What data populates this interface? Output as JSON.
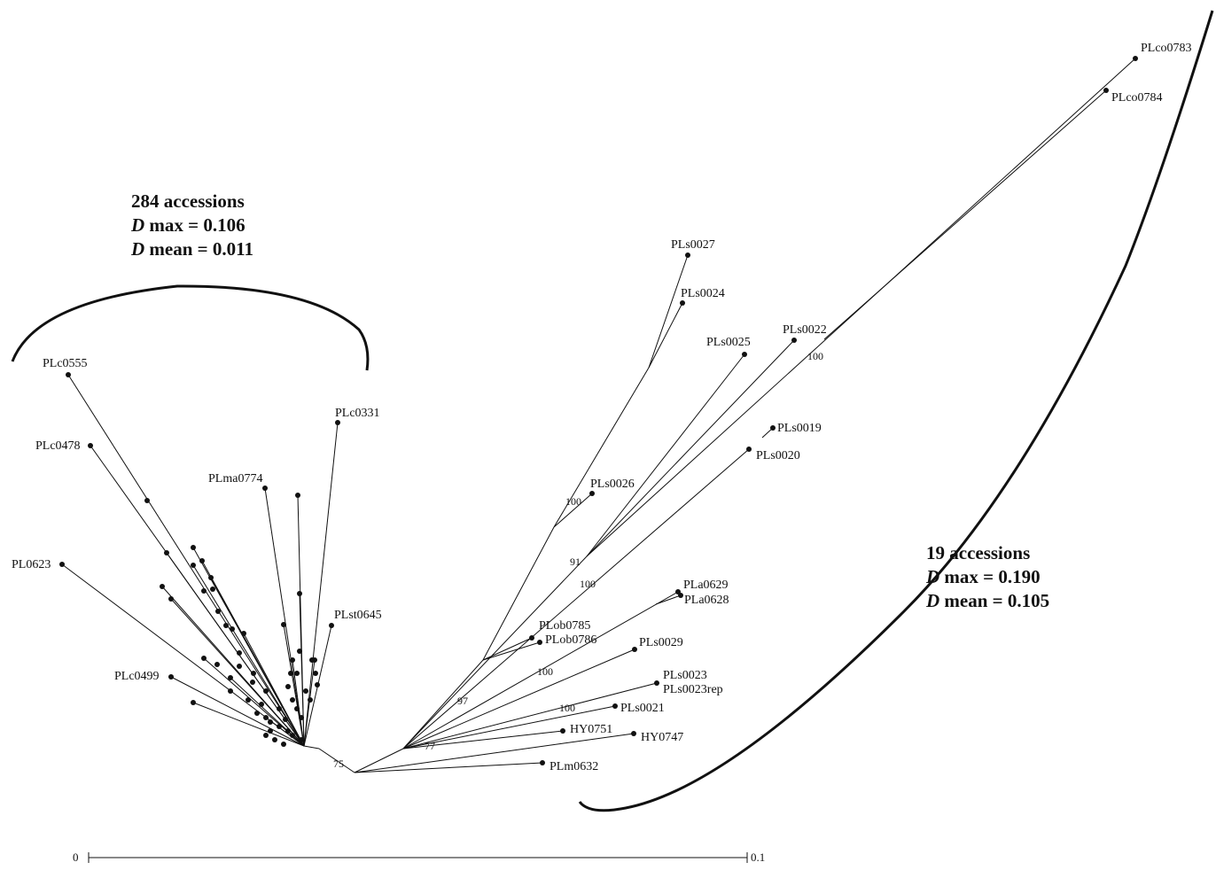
{
  "summaries": {
    "left": {
      "accessions": "284 accessions",
      "dmax_value": "max = 0.106",
      "dmean_value": "mean = 0.011",
      "d_symbol": "D"
    },
    "right": {
      "accessions": "19 accessions",
      "dmax_value": "max = 0.190",
      "dmean_value": "mean = 0.105",
      "d_symbol": "D"
    }
  },
  "tips": {
    "PLco0783": "PLco0783",
    "PLco0784": "PLco0784",
    "PLs0027": "PLs0027",
    "PLs0024": "PLs0024",
    "PLs0025": "PLs0025",
    "PLs0022": "PLs0022",
    "PLs0019": "PLs0019",
    "PLs0020": "PLs0020",
    "PLs0026": "PLs0026",
    "PLa0629": "PLa0629",
    "PLa0628": "PLa0628",
    "PLob0785": "PLob0785",
    "PLob0786": "PLob0786",
    "PLs0029": "PLs0029",
    "PLs0023": "PLs0023",
    "PLs0023rep": "PLs0023rep",
    "PLs0021": "PLs0021",
    "HY0751": "HY0751",
    "HY0747": "HY0747",
    "PLm0632": "PLm0632",
    "PLc0555": "PLc0555",
    "PLc0478": "PLc0478",
    "PLc0331": "PLc0331",
    "PLma0774": "PLma0774",
    "PL0623": "PL0623",
    "PLst0645": "PLst0645",
    "PLc0499": "PLc0499"
  },
  "support": {
    "b100_co": "100",
    "b100_s26": "100",
    "b91": "91",
    "b100_s20": "100",
    "b100_a": "100",
    "b97": "97",
    "b100_s21": "100",
    "b77": "77",
    "b75": "75"
  },
  "scale_bar": {
    "start": "0",
    "end": "0.1"
  }
}
